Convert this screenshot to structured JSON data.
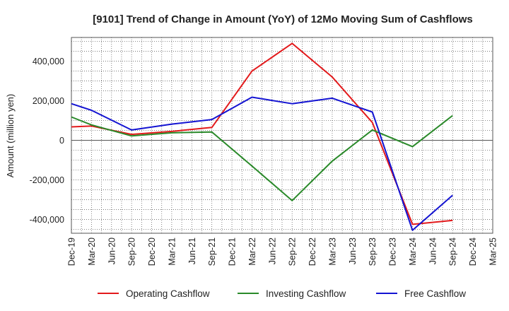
{
  "chart_data": {
    "type": "line",
    "title": "[9101]  Trend of Change in Amount (YoY) of 12Mo Moving Sum of Cashflows",
    "xlabel": "",
    "ylabel": "Amount (million yen)",
    "ylim": [
      -470000,
      520000
    ],
    "yticks": [
      400000,
      200000,
      0,
      -200000,
      -400000
    ],
    "ytick_labels": [
      "400,000",
      "200,000",
      "0",
      "-200,000",
      "-400,000"
    ],
    "grid": true,
    "legend_position": "bottom",
    "categories": [
      "Dec-19",
      "Mar-20",
      "Jun-20",
      "Sep-20",
      "Dec-20",
      "Mar-21",
      "Jun-21",
      "Sep-21",
      "Dec-21",
      "Mar-22",
      "Jun-22",
      "Sep-22",
      "Dec-22",
      "Mar-23",
      "Jun-23",
      "Sep-23",
      "Dec-23",
      "Mar-24",
      "Jun-24",
      "Sep-24",
      "Dec-24",
      "Mar-25"
    ],
    "series": [
      {
        "name": "Operating Cashflow",
        "color": "#e31a1c",
        "values": [
          68000,
          72000,
          null,
          30000,
          null,
          45000,
          null,
          65000,
          null,
          350000,
          null,
          490000,
          null,
          320000,
          null,
          90000,
          null,
          -425000,
          null,
          -405000,
          null,
          null
        ]
      },
      {
        "name": "Investing Cashflow",
        "color": "#2a8a2a",
        "values": [
          118000,
          78000,
          null,
          22000,
          null,
          38000,
          null,
          42000,
          null,
          -130000,
          null,
          -305000,
          null,
          -105000,
          null,
          52000,
          null,
          -32000,
          null,
          125000,
          null,
          null
        ]
      },
      {
        "name": "Free Cashflow",
        "color": "#1414d2",
        "values": [
          185000,
          152000,
          null,
          52000,
          null,
          82000,
          null,
          105000,
          null,
          218000,
          null,
          185000,
          null,
          213000,
          null,
          143000,
          null,
          -455000,
          null,
          -278000,
          null,
          null
        ]
      }
    ]
  }
}
